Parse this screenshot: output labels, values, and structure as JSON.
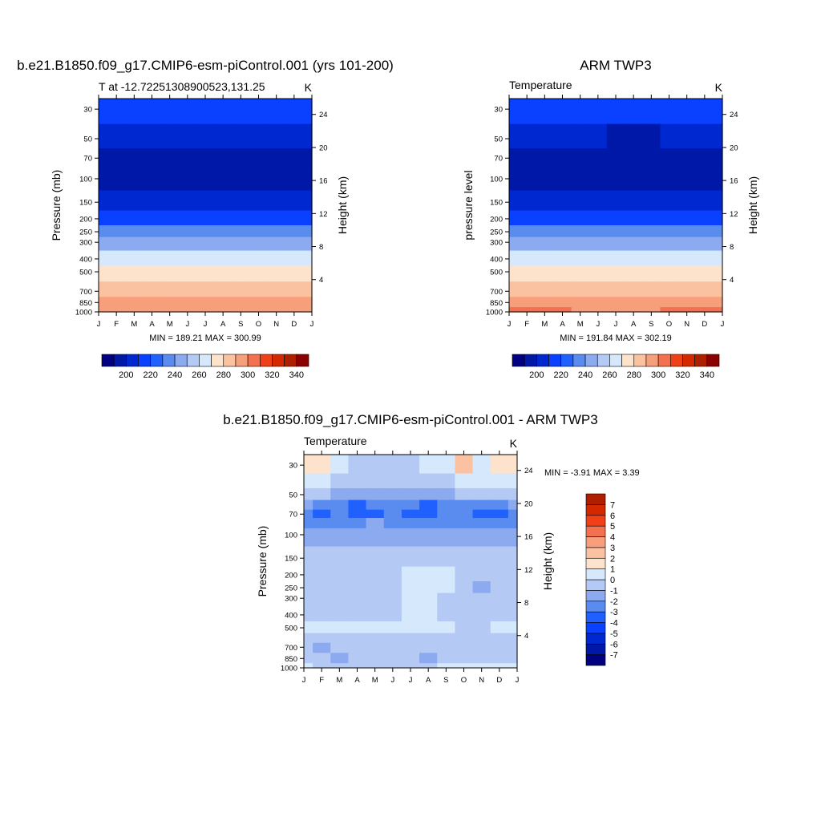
{
  "figure": {
    "panels": [
      {
        "id": "model",
        "suptitle": "b.e21.B1850.f09_g17.CMIP6-esm-piControl.001 (yrs 101-200)",
        "left_title": "T at -12.72251308900523,131.25",
        "right_title": "K",
        "ylabel": "Pressure (mb)",
        "y2label": "Height (km)",
        "stat_text": "MIN = 189.21 MAX = 300.99"
      },
      {
        "id": "obs",
        "suptitle": "ARM TWP3",
        "left_title": "Temperature",
        "right_title": "K",
        "ylabel": "pressure level",
        "y2label": "Height (km)",
        "stat_text": "MIN = 191.84 MAX = 302.19"
      },
      {
        "id": "diff",
        "suptitle": "b.e21.B1850.f09_g17.CMIP6-esm-piControl.001 - ARM TWP3",
        "left_title": "Temperature",
        "right_title": "K",
        "ylabel": "Pressure (mb)",
        "y2label": "Height (km)",
        "stat_text": "MIN =  -3.91 MAX =   3.39"
      }
    ]
  },
  "chart_data": [
    {
      "type": "heatmap",
      "panel": "model",
      "x": [
        "J",
        "F",
        "M",
        "A",
        "M",
        "J",
        "J",
        "A",
        "S",
        "O",
        "N",
        "D",
        "J"
      ],
      "y_pressure_mb": [
        30,
        50,
        70,
        100,
        150,
        200,
        250,
        300,
        400,
        500,
        700,
        850,
        1000
      ],
      "y_ticks_left": [
        30,
        50,
        70,
        100,
        150,
        200,
        250,
        300,
        400,
        500,
        700,
        850,
        1000
      ],
      "y_ticks_right_km": [
        24,
        20,
        16,
        12,
        8,
        4
      ],
      "ylim_mb": [
        1000,
        25
      ],
      "y_scale": "log",
      "values_K": [
        [
          216,
          216,
          215,
          215,
          214,
          213,
          213,
          214,
          215,
          216,
          216,
          216,
          216
        ],
        [
          205,
          205,
          204,
          203,
          202,
          201,
          200,
          201,
          202,
          204,
          205,
          205,
          205
        ],
        [
          195,
          195,
          194,
          194,
          193,
          192,
          192,
          192,
          193,
          194,
          195,
          195,
          195
        ],
        [
          194,
          194,
          194,
          193,
          193,
          193,
          192,
          192,
          193,
          194,
          194,
          194,
          194
        ],
        [
          201,
          201,
          201,
          201,
          201,
          200,
          200,
          200,
          201,
          201,
          201,
          201,
          201
        ],
        [
          219,
          219,
          219,
          219,
          219,
          218,
          218,
          218,
          219,
          219,
          219,
          219,
          219
        ],
        [
          232,
          232,
          232,
          232,
          231,
          231,
          231,
          231,
          231,
          232,
          232,
          232,
          232
        ],
        [
          244,
          244,
          244,
          244,
          243,
          243,
          243,
          243,
          243,
          244,
          244,
          244,
          244
        ],
        [
          262,
          262,
          262,
          262,
          262,
          261,
          261,
          261,
          262,
          262,
          262,
          262,
          262
        ],
        [
          272,
          272,
          272,
          272,
          272,
          271,
          271,
          271,
          272,
          272,
          272,
          272,
          272
        ],
        [
          284,
          284,
          284,
          284,
          284,
          283,
          283,
          283,
          284,
          284,
          284,
          284,
          284
        ],
        [
          292,
          292,
          292,
          292,
          292,
          291,
          290,
          291,
          292,
          292,
          292,
          292,
          292
        ],
        [
          299,
          299,
          299,
          299,
          299,
          298,
          298,
          298,
          299,
          299,
          299,
          299,
          299
        ]
      ],
      "stats": {
        "min": 189.21,
        "max": 300.99
      },
      "colorbar": {
        "levels": [
          190,
          200,
          210,
          220,
          230,
          240,
          250,
          260,
          270,
          280,
          290,
          300,
          310,
          320,
          330,
          340
        ],
        "labels": [
          200,
          220,
          240,
          260,
          280,
          300,
          320,
          340
        ],
        "colors": [
          "#000080",
          "#0018a8",
          "#0028d0",
          "#0a40ff",
          "#2060ff",
          "#5a8cf0",
          "#8caaf0",
          "#b4caf5",
          "#d6e8fc",
          "#fde3cc",
          "#fbc2a2",
          "#f79e7a",
          "#f37050",
          "#f04018",
          "#d42800",
          "#b01e00",
          "#8c0000"
        ]
      }
    },
    {
      "type": "heatmap",
      "panel": "obs",
      "x": [
        "J",
        "F",
        "M",
        "A",
        "M",
        "J",
        "J",
        "A",
        "S",
        "O",
        "N",
        "D",
        "J"
      ],
      "y_pressure_mb": [
        30,
        50,
        70,
        100,
        150,
        200,
        250,
        300,
        400,
        500,
        700,
        850,
        1000
      ],
      "y_ticks_left": [
        30,
        50,
        70,
        100,
        150,
        200,
        250,
        300,
        400,
        500,
        700,
        850,
        1000
      ],
      "y_ticks_right_km": [
        24,
        20,
        16,
        12,
        8,
        4
      ],
      "ylim_mb": [
        1000,
        25
      ],
      "y_scale": "log",
      "values_K": [
        [
          215,
          215,
          214,
          213,
          212,
          212,
          212,
          211,
          212,
          213,
          214,
          215,
          215
        ],
        [
          204,
          204,
          203,
          202,
          201,
          200,
          199,
          198,
          199,
          200,
          201,
          202,
          204
        ],
        [
          194,
          194,
          193,
          193,
          193,
          192,
          192,
          192,
          193,
          193,
          194,
          194,
          194
        ],
        [
          193,
          193,
          193,
          192,
          192,
          192,
          192,
          192,
          192,
          193,
          193,
          193,
          193
        ],
        [
          201,
          201,
          201,
          201,
          200,
          200,
          200,
          200,
          200,
          201,
          201,
          201,
          201
        ],
        [
          219,
          219,
          219,
          219,
          218,
          218,
          218,
          218,
          218,
          219,
          219,
          219,
          219
        ],
        [
          232,
          232,
          232,
          232,
          231,
          231,
          231,
          231,
          231,
          232,
          232,
          232,
          232
        ],
        [
          244,
          244,
          244,
          244,
          243,
          243,
          243,
          243,
          243,
          244,
          244,
          244,
          244
        ],
        [
          262,
          262,
          262,
          262,
          262,
          261,
          261,
          261,
          262,
          262,
          262,
          262,
          262
        ],
        [
          272,
          272,
          272,
          272,
          272,
          271,
          271,
          271,
          272,
          272,
          272,
          272,
          272
        ],
        [
          284,
          284,
          284,
          284,
          284,
          283,
          283,
          283,
          284,
          284,
          284,
          284,
          284
        ],
        [
          293,
          293,
          293,
          293,
          292,
          291,
          291,
          291,
          292,
          293,
          293,
          293,
          293
        ],
        [
          300,
          300,
          300,
          300,
          299,
          299,
          298,
          299,
          299,
          300,
          300,
          300,
          300
        ]
      ],
      "stats": {
        "min": 191.84,
        "max": 302.19
      },
      "colorbar": {
        "levels": [
          190,
          200,
          210,
          220,
          230,
          240,
          250,
          260,
          270,
          280,
          290,
          300,
          310,
          320,
          330,
          340
        ],
        "labels": [
          200,
          220,
          240,
          260,
          280,
          300,
          320,
          340
        ],
        "colors": [
          "#000080",
          "#0018a8",
          "#0028d0",
          "#0a40ff",
          "#2060ff",
          "#5a8cf0",
          "#8caaf0",
          "#b4caf5",
          "#d6e8fc",
          "#fde3cc",
          "#fbc2a2",
          "#f79e7a",
          "#f37050",
          "#f04018",
          "#d42800",
          "#b01e00",
          "#8c0000"
        ]
      }
    },
    {
      "type": "heatmap",
      "panel": "diff",
      "x": [
        "J",
        "F",
        "M",
        "A",
        "M",
        "J",
        "J",
        "A",
        "S",
        "O",
        "N",
        "D",
        "J"
      ],
      "y_pressure_mb": [
        30,
        40,
        50,
        60,
        70,
        80,
        100,
        150,
        200,
        250,
        300,
        400,
        500,
        600,
        700,
        850,
        1000
      ],
      "y_ticks_left": [
        30,
        50,
        70,
        100,
        150,
        200,
        250,
        300,
        400,
        500,
        700,
        850,
        1000
      ],
      "y_ticks_right_km": [
        24,
        20,
        16,
        12,
        8,
        4
      ],
      "ylim_mb": [
        1000,
        25
      ],
      "y_scale": "log",
      "values_K": [
        [
          1.5,
          1.2,
          0.5,
          -0.5,
          -0.5,
          -0.5,
          -0.4,
          0.2,
          0.5,
          2.2,
          0.8,
          1.8,
          1.5
        ],
        [
          0.5,
          0.2,
          -0.6,
          -0.6,
          -0.6,
          -0.5,
          -0.5,
          -0.6,
          -0.6,
          0.8,
          0.5,
          0.5,
          0.5
        ],
        [
          -0.5,
          -0.8,
          -1.5,
          -1.6,
          -1.6,
          -1.4,
          -1.4,
          -1.5,
          -1.5,
          -1.0,
          -0.8,
          -0.8,
          -0.5
        ],
        [
          -1.6,
          -2.2,
          -2.6,
          -3.1,
          -2.6,
          -2.3,
          -2.6,
          -3.2,
          -2.6,
          -2.2,
          -2.4,
          -2.6,
          -1.6
        ],
        [
          -2.8,
          -3.2,
          -3.0,
          -3.1,
          -3.2,
          -3.0,
          -3.1,
          -3.4,
          -3.0,
          -2.8,
          -3.2,
          -3.3,
          -2.8
        ],
        [
          -2.4,
          -2.8,
          -2.6,
          -2.2,
          -2.0,
          -2.4,
          -2.6,
          -2.5,
          -2.4,
          -2.2,
          -2.5,
          -2.7,
          -2.4
        ],
        [
          -1.6,
          -2.0,
          -1.8,
          -1.5,
          -1.4,
          -1.6,
          -1.8,
          -1.7,
          -1.7,
          -1.5,
          -1.7,
          -1.9,
          -1.6
        ],
        [
          -0.5,
          -0.6,
          -0.5,
          -0.6,
          -0.5,
          -0.6,
          -0.7,
          -0.6,
          -0.6,
          -0.5,
          -0.6,
          -0.6,
          -0.5
        ],
        [
          -0.3,
          -0.3,
          -0.3,
          -0.4,
          -0.3,
          -0.3,
          0.5,
          0.8,
          0.4,
          -0.3,
          -1.0,
          -0.6,
          -0.3
        ],
        [
          -0.3,
          -0.3,
          -0.3,
          -0.4,
          -0.4,
          -0.3,
          0.6,
          0.6,
          0.3,
          -0.3,
          -1.2,
          -0.8,
          -0.3
        ],
        [
          -0.4,
          -0.3,
          -0.3,
          -0.5,
          -0.3,
          -0.2,
          0.5,
          0.4,
          -0.2,
          -0.3,
          -1.0,
          -0.6,
          -0.4
        ],
        [
          -0.3,
          -0.3,
          -0.2,
          -0.3,
          -0.2,
          -0.2,
          0.2,
          0.2,
          -0.3,
          -0.3,
          -0.4,
          -0.3,
          -0.3
        ],
        [
          0.3,
          0.4,
          0.5,
          0.2,
          0.3,
          0.3,
          0.2,
          0.3,
          0.2,
          -0.3,
          -0.3,
          0.2,
          0.3
        ],
        [
          -0.3,
          -0.3,
          -0.3,
          -0.4,
          -0.3,
          -0.3,
          -0.3,
          -0.4,
          -0.3,
          -0.3,
          -0.3,
          -0.3,
          -0.3
        ],
        [
          -0.4,
          -1.1,
          -0.3,
          -0.5,
          -0.4,
          -0.5,
          -0.4,
          -0.6,
          -0.3,
          -0.4,
          -0.3,
          -0.5,
          -0.4
        ],
        [
          -0.8,
          -0.5,
          -1.2,
          -0.6,
          -1.0,
          -0.6,
          -0.9,
          -1.1,
          -0.6,
          -0.5,
          -0.8,
          -0.6,
          -0.8
        ],
        [
          0.3,
          -0.5,
          -0.4,
          -0.6,
          -0.5,
          -0.8,
          -0.6,
          -0.4,
          0.2,
          0.5,
          0.3,
          0.4,
          0.3
        ]
      ],
      "stats": {
        "min": -3.91,
        "max": 3.39
      },
      "colorbar": {
        "levels": [
          -7,
          -6,
          -5,
          -4,
          -3,
          -2,
          -1,
          0,
          1,
          2,
          3,
          4,
          5,
          6,
          7
        ],
        "labels": [
          -7,
          -6,
          -5,
          -4,
          -3,
          -2,
          -1,
          0,
          1,
          2,
          3,
          4,
          5,
          6,
          7
        ],
        "colors": [
          "#000080",
          "#0018a8",
          "#0028d0",
          "#0a40ff",
          "#2060ff",
          "#5a8cf0",
          "#8caaf0",
          "#b4caf5",
          "#d6e8fc",
          "#fde3cc",
          "#fbc2a2",
          "#f79e7a",
          "#f37050",
          "#f04018",
          "#d42800",
          "#b01e00"
        ]
      }
    }
  ]
}
